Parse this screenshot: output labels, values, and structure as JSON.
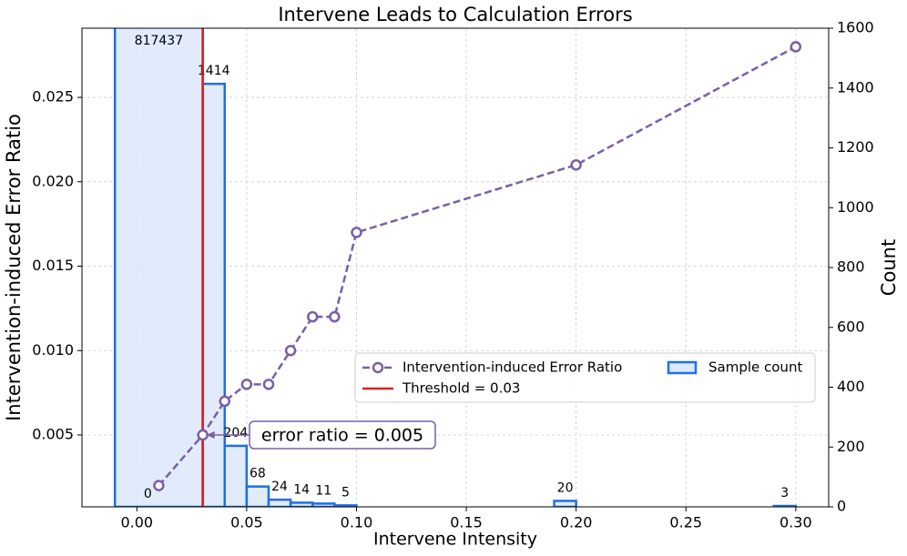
{
  "chart_data": {
    "type": "histogram-line",
    "title": "Intervene Leads to Calculation Errors",
    "x_label": "Intervene Intensity",
    "y_label": "Intervention-induced Error Ratio",
    "y2_label": "Count",
    "xlim": [
      -0.025,
      0.315
    ],
    "xticks": [
      {
        "value": 0,
        "label": "0.00"
      },
      {
        "value": 0.05,
        "label": "0.05"
      },
      {
        "value": 0.1,
        "label": "0.10"
      },
      {
        "value": 0.15,
        "label": "0.15"
      },
      {
        "value": 0.2,
        "label": "0.20"
      },
      {
        "value": 0.25,
        "label": "0.25"
      },
      {
        "value": 0.3,
        "label": "0.30"
      }
    ],
    "ylim": [
      0.00074,
      0.0291
    ],
    "yticks": [
      {
        "value": 0.005,
        "label": "0.005"
      },
      {
        "value": 0.01,
        "label": "0.010"
      },
      {
        "value": 0.015,
        "label": "0.015"
      },
      {
        "value": 0.02,
        "label": "0.020"
      },
      {
        "value": 0.025,
        "label": "0.025"
      }
    ],
    "y2lim": [
      0,
      1600
    ],
    "y2ticks": [
      0,
      200,
      400,
      600,
      800,
      1000,
      1200,
      1400,
      1600
    ],
    "grid": true,
    "series": [
      {
        "name": "Intervention-induced Error Ratio",
        "color": "#7b5ea7",
        "x": [
          0.01,
          0.03,
          0.04,
          0.05,
          0.06,
          0.07,
          0.08,
          0.09,
          0.1,
          0.2,
          0.3
        ],
        "values": [
          0.002,
          0.005,
          0.007,
          0.008,
          0.008,
          0.01,
          0.012,
          0.012,
          0.017,
          0.021,
          0.028
        ]
      }
    ],
    "histogram": {
      "name": "Sample count",
      "color": "#1f6fe5",
      "fill": "#dce8fb",
      "axis": "y2",
      "bars": [
        {
          "x0": -0.01,
          "x1": 0.03,
          "count": 817437
        },
        {
          "x0": 0.0,
          "x1": 0.01,
          "count": 0
        },
        {
          "x0": 0.03,
          "x1": 0.04,
          "count": 1414
        },
        {
          "x0": 0.04,
          "x1": 0.05,
          "count": 204
        },
        {
          "x0": 0.05,
          "x1": 0.06,
          "count": 68
        },
        {
          "x0": 0.06,
          "x1": 0.07,
          "count": 24
        },
        {
          "x0": 0.07,
          "x1": 0.08,
          "count": 14
        },
        {
          "x0": 0.08,
          "x1": 0.09,
          "count": 11
        },
        {
          "x0": 0.09,
          "x1": 0.1,
          "count": 5
        },
        {
          "x0": 0.19,
          "x1": 0.2,
          "count": 20
        },
        {
          "x0": 0.29,
          "x1": 0.3,
          "count": 3
        }
      ]
    },
    "threshold": {
      "name": "Threshold = 0.03",
      "value": 0.03,
      "color": "#e31a1c"
    },
    "annotation": {
      "text": "error ratio = 0.005",
      "x": 0.03,
      "y": 0.005
    },
    "legend": "center right"
  }
}
